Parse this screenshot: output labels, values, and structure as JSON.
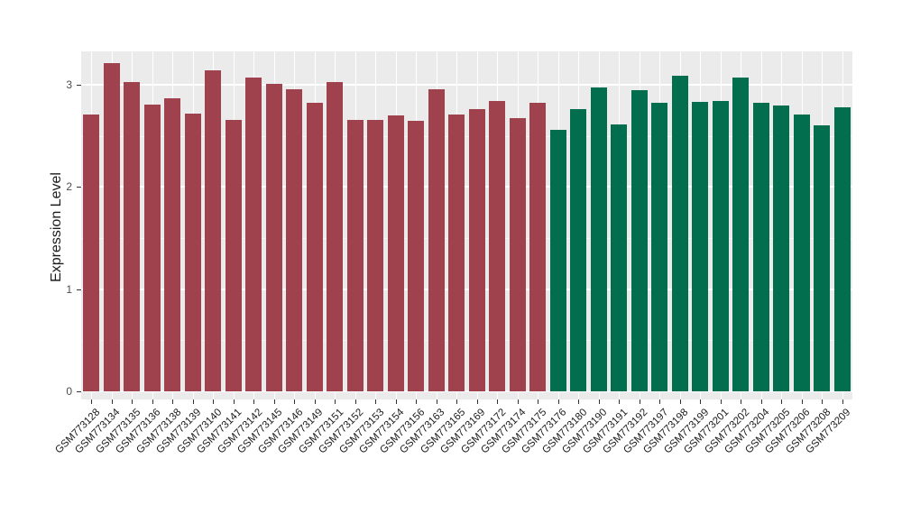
{
  "figure": {
    "background": "#FFFFFF",
    "panel_background": "#EBEBEB",
    "gridline_color": "#FFFFFF",
    "tick_color": "#333333",
    "axis_text_color": "#4D4D4D"
  },
  "chart_data": {
    "type": "bar",
    "title": "",
    "xlabel": "",
    "ylabel": "Expression Level",
    "ylim": [
      -0.08,
      3.34
    ],
    "yticks": [
      0,
      1,
      2,
      3
    ],
    "minor_yticks": [
      0.5,
      1.5,
      2.5
    ],
    "grid": true,
    "legend": "none",
    "categories": [
      "GSM773128",
      "GSM773134",
      "GSM773135",
      "GSM773136",
      "GSM773138",
      "GSM773139",
      "GSM773140",
      "GSM773141",
      "GSM773142",
      "GSM773145",
      "GSM773146",
      "GSM773149",
      "GSM773151",
      "GSM773152",
      "GSM773153",
      "GSM773154",
      "GSM773156",
      "GSM773163",
      "GSM773165",
      "GSM773169",
      "GSM773172",
      "GSM773174",
      "GSM773175",
      "GSM773176",
      "GSM773180",
      "GSM773190",
      "GSM773191",
      "GSM773192",
      "GSM773197",
      "GSM773198",
      "GSM773199",
      "GSM773201",
      "GSM773202",
      "GSM773204",
      "GSM773205",
      "GSM773206",
      "GSM773208",
      "GSM773209"
    ],
    "values": [
      2.71,
      3.21,
      3.03,
      2.81,
      2.87,
      2.72,
      3.14,
      2.66,
      3.07,
      3.01,
      2.96,
      2.82,
      3.03,
      2.66,
      2.66,
      2.7,
      2.65,
      2.96,
      2.71,
      2.76,
      2.84,
      2.67,
      2.82,
      2.56,
      2.76,
      2.97,
      2.61,
      2.95,
      2.82,
      3.09,
      2.83,
      2.84,
      3.07,
      2.82,
      2.8,
      2.71,
      2.6,
      2.78
    ],
    "groups": [
      "group1",
      "group1",
      "group1",
      "group1",
      "group1",
      "group1",
      "group1",
      "group1",
      "group1",
      "group1",
      "group1",
      "group1",
      "group1",
      "group1",
      "group1",
      "group1",
      "group1",
      "group1",
      "group1",
      "group1",
      "group1",
      "group1",
      "group1",
      "group2",
      "group2",
      "group2",
      "group2",
      "group2",
      "group2",
      "group2",
      "group2",
      "group2",
      "group2",
      "group2",
      "group2",
      "group2",
      "group2",
      "group2"
    ],
    "group_colors": {
      "group1": "#A0424E",
      "group2": "#036E4E"
    }
  }
}
